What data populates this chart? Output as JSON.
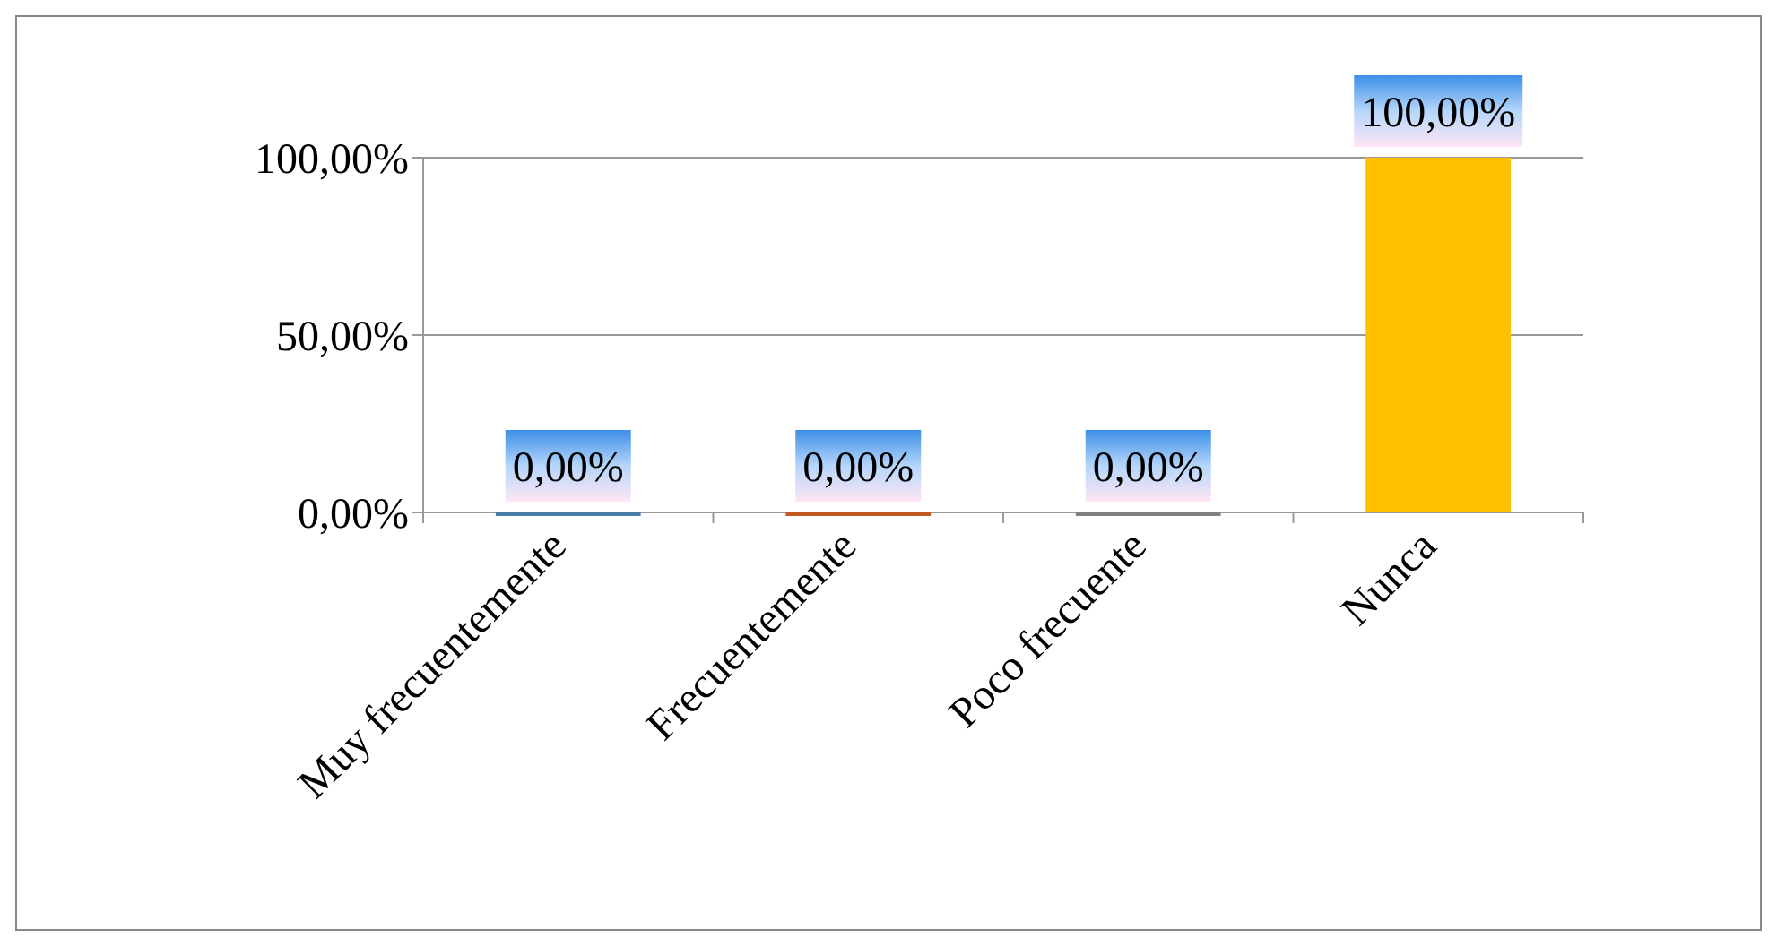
{
  "chart_data": {
    "type": "bar",
    "categories": [
      "Muy frecuentemente",
      "Frecuentemente",
      "Poco frecuente",
      "Nunca"
    ],
    "values": [
      0,
      0,
      0,
      100
    ],
    "colors": [
      "#4a7aa8",
      "#c0581f",
      "#808080",
      "#ffc000"
    ],
    "value_labels": [
      "0,00%",
      "0,00%",
      "0,00%",
      "100,00%"
    ],
    "ylim": [
      0,
      100
    ],
    "yticks": [
      {
        "value": 0,
        "label": "0,00%"
      },
      {
        "value": 50,
        "label": "50,00%"
      },
      {
        "value": 100,
        "label": "100,00%"
      }
    ],
    "grid": "y",
    "legend": false
  }
}
